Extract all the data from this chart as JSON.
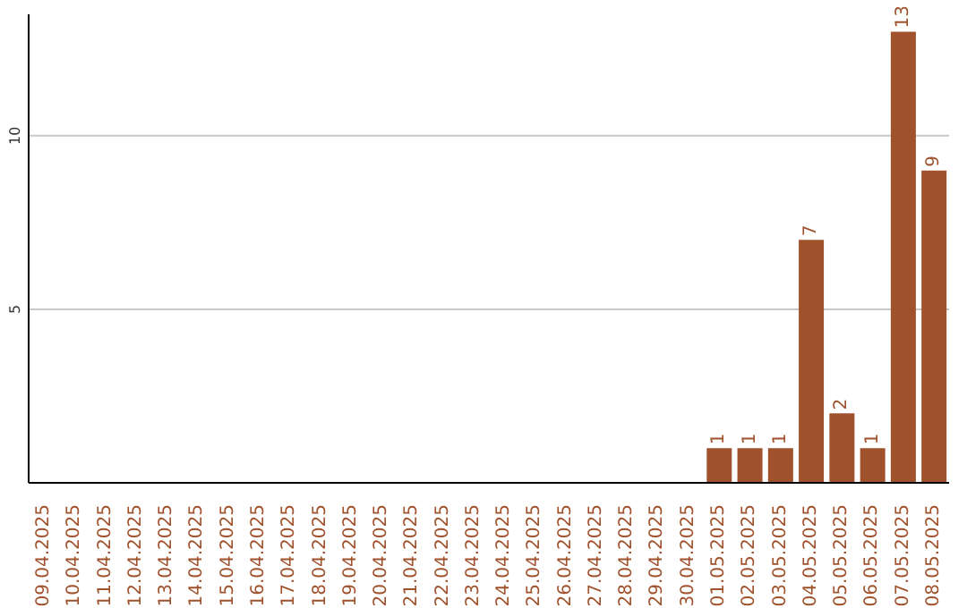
{
  "chart_data": {
    "type": "bar",
    "categories": [
      "09.04.2025",
      "10.04.2025",
      "11.04.2025",
      "12.04.2025",
      "13.04.2025",
      "14.04.2025",
      "15.04.2025",
      "16.04.2025",
      "17.04.2025",
      "18.04.2025",
      "19.04.2025",
      "20.04.2025",
      "21.04.2025",
      "22.04.2025",
      "23.04.2025",
      "24.04.2025",
      "25.04.2025",
      "26.04.2025",
      "27.04.2025",
      "28.04.2025",
      "29.04.2025",
      "30.04.2025",
      "01.05.2025",
      "02.05.2025",
      "03.05.2025",
      "04.05.2025",
      "05.05.2025",
      "06.05.2025",
      "07.05.2025",
      "08.05.2025"
    ],
    "values": [
      0,
      0,
      0,
      0,
      0,
      0,
      0,
      0,
      0,
      0,
      0,
      0,
      0,
      0,
      0,
      0,
      0,
      0,
      0,
      0,
      0,
      0,
      1,
      1,
      1,
      7,
      2,
      1,
      13,
      9
    ],
    "value_labels": [
      null,
      null,
      null,
      null,
      null,
      null,
      null,
      null,
      null,
      null,
      null,
      null,
      null,
      null,
      null,
      null,
      null,
      null,
      null,
      null,
      null,
      null,
      "1",
      "1",
      "1",
      "7",
      "2",
      "1",
      "13",
      "9"
    ],
    "color": "#a0522d",
    "ylim": [
      0,
      13.5
    ],
    "yticks": [
      5,
      10
    ],
    "grid": "y"
  }
}
